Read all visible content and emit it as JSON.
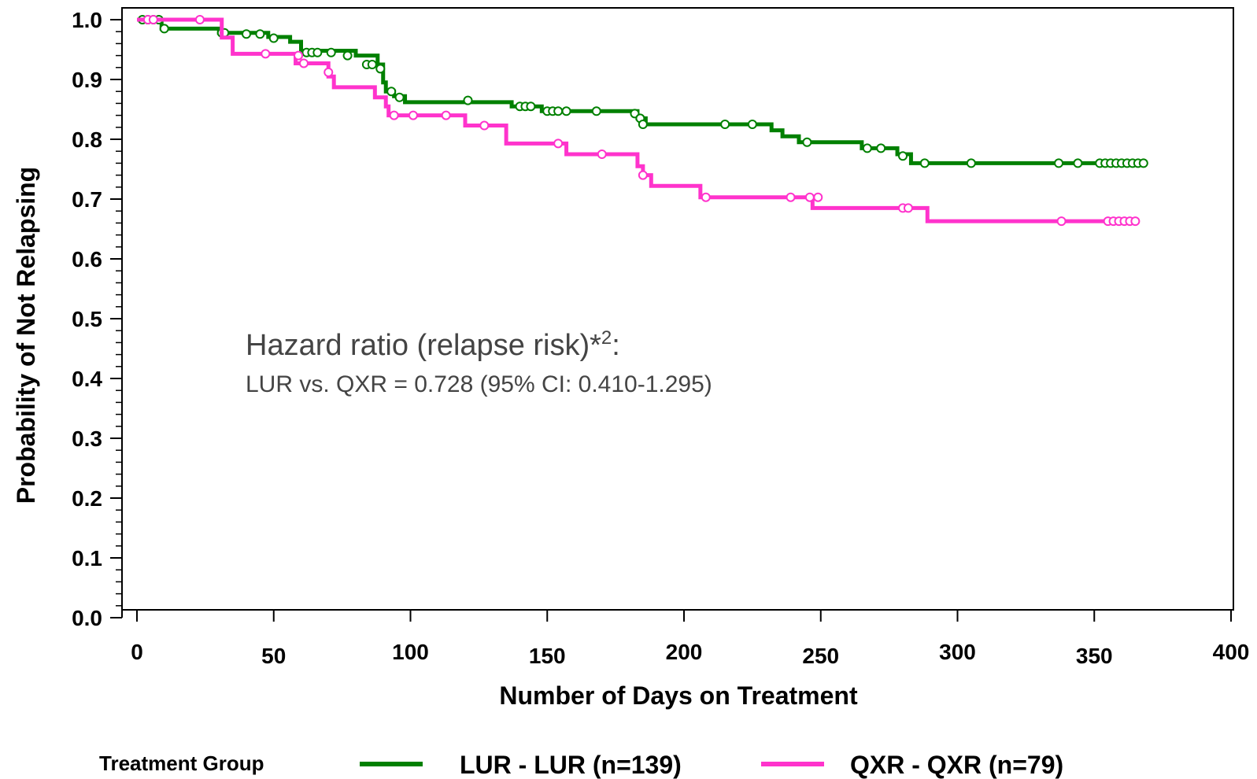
{
  "chart_data": {
    "type": "line",
    "xlabel": "Number of Days on Treatment",
    "ylabel": "Probability of Not Relapsing",
    "xlim": [
      0,
      400
    ],
    "ylim": [
      0,
      1.0
    ],
    "x_ticks": [
      0,
      50,
      100,
      150,
      200,
      250,
      300,
      350,
      400
    ],
    "x_tick_labels": [
      "0",
      "50",
      "100",
      "150",
      "200",
      "250",
      "300",
      "350",
      "400"
    ],
    "y_ticks": [
      0,
      0.1,
      0.2,
      0.3,
      0.4,
      0.5,
      0.6,
      0.7,
      0.8,
      0.9,
      1.0
    ],
    "y_tick_labels": [
      "0.0",
      "0.1",
      "0.2",
      "0.3",
      "0.4",
      "0.5",
      "0.6",
      "0.7",
      "0.8",
      "0.9",
      "1.0"
    ],
    "grid": false,
    "legend_position": "bottom",
    "legend_title": "Treatment Group",
    "annotation": {
      "line1": "Hazard ratio (relapse risk)*",
      "line1_sup": "2",
      "line1_suffix": ":",
      "line2": "LUR vs. QXR = 0.728 (95% CI: 0.410-1.295)"
    },
    "series": [
      {
        "name": "LUR - LUR (n=139)",
        "color": "#008000",
        "steps": [
          [
            0,
            1.0
          ],
          [
            9,
            0.985
          ],
          [
            30,
            0.978
          ],
          [
            48,
            0.971
          ],
          [
            56,
            0.963
          ],
          [
            60,
            0.948
          ],
          [
            80,
            0.94
          ],
          [
            88,
            0.925
          ],
          [
            90,
            0.895
          ],
          [
            91,
            0.88
          ],
          [
            94,
            0.872
          ],
          [
            98,
            0.862
          ],
          [
            137,
            0.855
          ],
          [
            148,
            0.847
          ],
          [
            183,
            0.835
          ],
          [
            186,
            0.825
          ],
          [
            232,
            0.815
          ],
          [
            236,
            0.805
          ],
          [
            242,
            0.795
          ],
          [
            265,
            0.785
          ],
          [
            278,
            0.775
          ],
          [
            283,
            0.76
          ],
          [
            369,
            0.76
          ]
        ],
        "censored": [
          [
            2,
            1.0
          ],
          [
            4,
            1.0
          ],
          [
            6,
            1.0
          ],
          [
            8,
            1.0
          ],
          [
            10,
            0.985
          ],
          [
            31,
            0.978
          ],
          [
            32,
            0.978
          ],
          [
            40,
            0.976
          ],
          [
            45,
            0.976
          ],
          [
            50,
            0.969
          ],
          [
            62,
            0.945
          ],
          [
            64,
            0.945
          ],
          [
            66,
            0.945
          ],
          [
            71,
            0.945
          ],
          [
            77,
            0.94
          ],
          [
            84,
            0.925
          ],
          [
            86,
            0.925
          ],
          [
            89,
            0.918
          ],
          [
            93,
            0.88
          ],
          [
            96,
            0.87
          ],
          [
            121,
            0.865
          ],
          [
            140,
            0.855
          ],
          [
            142,
            0.855
          ],
          [
            144,
            0.855
          ],
          [
            150,
            0.847
          ],
          [
            152,
            0.847
          ],
          [
            154,
            0.847
          ],
          [
            157,
            0.847
          ],
          [
            168,
            0.847
          ],
          [
            182,
            0.843
          ],
          [
            184,
            0.835
          ],
          [
            185,
            0.825
          ],
          [
            215,
            0.825
          ],
          [
            225,
            0.825
          ],
          [
            245,
            0.795
          ],
          [
            267,
            0.785
          ],
          [
            272,
            0.785
          ],
          [
            280,
            0.772
          ],
          [
            288,
            0.76
          ],
          [
            305,
            0.76
          ],
          [
            337,
            0.76
          ],
          [
            344,
            0.76
          ],
          [
            352,
            0.76
          ],
          [
            354,
            0.76
          ],
          [
            356,
            0.76
          ],
          [
            358,
            0.76
          ],
          [
            360,
            0.76
          ],
          [
            362,
            0.76
          ],
          [
            364,
            0.76
          ],
          [
            366,
            0.76
          ],
          [
            368,
            0.76
          ]
        ]
      },
      {
        "name": "QXR - QXR (n=79)",
        "color": "#ff33cc",
        "steps": [
          [
            0,
            1.0
          ],
          [
            31,
            0.97
          ],
          [
            35,
            0.943
          ],
          [
            58,
            0.927
          ],
          [
            70,
            0.905
          ],
          [
            72,
            0.887
          ],
          [
            87,
            0.87
          ],
          [
            91,
            0.855
          ],
          [
            92,
            0.84
          ],
          [
            120,
            0.823
          ],
          [
            135,
            0.793
          ],
          [
            157,
            0.775
          ],
          [
            183,
            0.755
          ],
          [
            185,
            0.74
          ],
          [
            188,
            0.722
          ],
          [
            206,
            0.703
          ],
          [
            247,
            0.685
          ],
          [
            289,
            0.663
          ],
          [
            366,
            0.663
          ]
        ],
        "censored": [
          [
            4,
            1.0
          ],
          [
            6,
            1.0
          ],
          [
            23,
            1.0
          ],
          [
            47,
            0.943
          ],
          [
            59,
            0.94
          ],
          [
            61,
            0.927
          ],
          [
            70,
            0.912
          ],
          [
            94,
            0.84
          ],
          [
            101,
            0.84
          ],
          [
            113,
            0.84
          ],
          [
            127,
            0.823
          ],
          [
            154,
            0.793
          ],
          [
            170,
            0.775
          ],
          [
            185,
            0.74
          ],
          [
            208,
            0.703
          ],
          [
            239,
            0.703
          ],
          [
            246,
            0.703
          ],
          [
            249,
            0.703
          ],
          [
            280,
            0.685
          ],
          [
            282,
            0.685
          ],
          [
            338,
            0.663
          ],
          [
            355,
            0.663
          ],
          [
            357,
            0.663
          ],
          [
            359,
            0.663
          ],
          [
            361,
            0.663
          ],
          [
            363,
            0.663
          ],
          [
            365,
            0.663
          ]
        ]
      }
    ]
  }
}
